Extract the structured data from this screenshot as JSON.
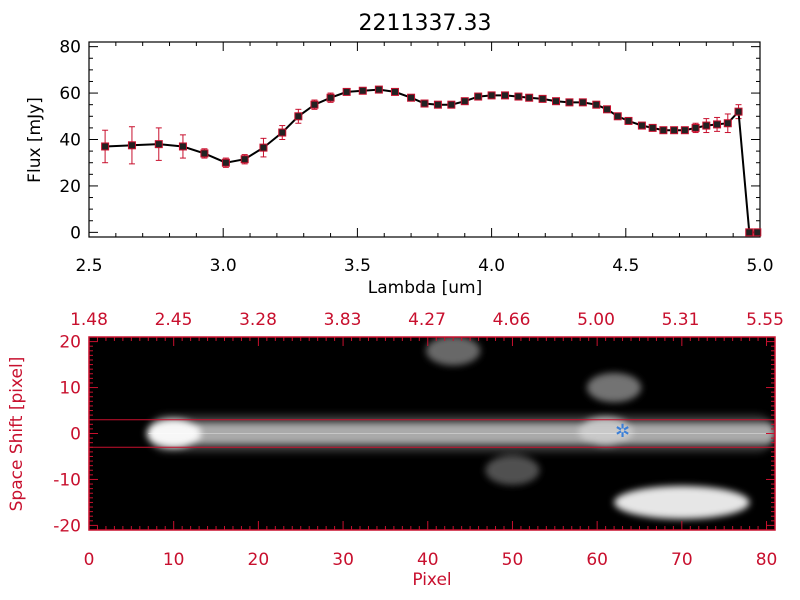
{
  "title": "2211337.33",
  "chart_data": [
    {
      "type": "line",
      "xlabel": "Lambda [um]",
      "ylabel": "Flux [mJy]",
      "xlim": [
        2.5,
        5.0
      ],
      "ylim": [
        -2,
        82
      ],
      "xticks": [
        "2.5",
        "3.0",
        "3.5",
        "4.0",
        "4.5",
        "5.0"
      ],
      "yticks": [
        "0",
        "20",
        "40",
        "60",
        "80"
      ],
      "grid": false,
      "series": [
        {
          "x": [
            2.56,
            2.66,
            2.76,
            2.85,
            2.93,
            3.01,
            3.08,
            3.15,
            3.22,
            3.28,
            3.34,
            3.4,
            3.46,
            3.52,
            3.58,
            3.64,
            3.7,
            3.75,
            3.8,
            3.85,
            3.9,
            3.95,
            4.0,
            4.05,
            4.1,
            4.14,
            4.19,
            4.24,
            4.29,
            4.34,
            4.39,
            4.43,
            4.47,
            4.51,
            4.56,
            4.6,
            4.64,
            4.68,
            4.72,
            4.76,
            4.8,
            4.84,
            4.88,
            4.92,
            4.96,
            4.99
          ],
          "y": [
            37,
            37.5,
            38,
            37,
            34,
            30,
            31.5,
            36.5,
            43,
            50,
            55,
            58,
            60.5,
            61,
            61.5,
            60.5,
            58,
            55.5,
            55,
            55,
            56.5,
            58.5,
            59,
            59,
            58.5,
            58,
            57.5,
            56.5,
            56,
            56,
            55,
            53,
            50,
            48,
            46,
            45,
            44,
            44,
            44,
            45,
            46,
            46.5,
            47,
            52,
            0,
            0
          ],
          "error": [
            7,
            8,
            7,
            5,
            2,
            2,
            2,
            4,
            3,
            3,
            2,
            2,
            1,
            1,
            1,
            1,
            1,
            1,
            1,
            1,
            1,
            1,
            1,
            1,
            1,
            1,
            1,
            1,
            1,
            1,
            1,
            1,
            1,
            1,
            1,
            1,
            1,
            1,
            1,
            2,
            3,
            3,
            4,
            3,
            0,
            0
          ]
        }
      ]
    },
    {
      "type": "heatmap",
      "xlabel": "Pixel",
      "ylabel": "Space Shift [pixel]",
      "xlim": [
        0,
        81
      ],
      "ylim": [
        -21,
        21
      ],
      "xticks": [
        "0",
        "10",
        "20",
        "30",
        "40",
        "50",
        "60",
        "70",
        "80"
      ],
      "yticks": [
        "-20",
        "-10",
        "0",
        "10",
        "20"
      ],
      "top_ticks": [
        "1.48",
        "2.45",
        "3.28",
        "3.83",
        "4.27",
        "4.66",
        "5.00",
        "5.31",
        "5.55"
      ],
      "extraction_band": [
        -3,
        3
      ],
      "marker": {
        "x": 63,
        "y": 0.5,
        "symbol": "star"
      },
      "colormap": "grayscale",
      "sources": [
        {
          "label": "trace",
          "x_start": 7,
          "x_end": 81,
          "y": 0,
          "brightness": 0.75
        },
        {
          "label": "knot-1",
          "x": 10,
          "y": 0,
          "brightness": 1.0
        },
        {
          "label": "knot-2",
          "x": 61,
          "y": 0.5,
          "brightness": 0.8
        },
        {
          "label": "source-top",
          "x": 43,
          "y": 18,
          "brightness": 0.45
        },
        {
          "label": "source-upper",
          "x": 62,
          "y": 10,
          "brightness": 0.5
        },
        {
          "label": "source-low",
          "x": 50,
          "y": -8,
          "brightness": 0.35
        },
        {
          "label": "source-bottom",
          "x": 70,
          "y": -15,
          "brightness": 1.0
        }
      ]
    }
  ],
  "colors": {
    "axis_top": "#000000",
    "axis_bottom": "#c8102e",
    "errorbar": "#c8102e",
    "marker": "#3a7fd8"
  }
}
